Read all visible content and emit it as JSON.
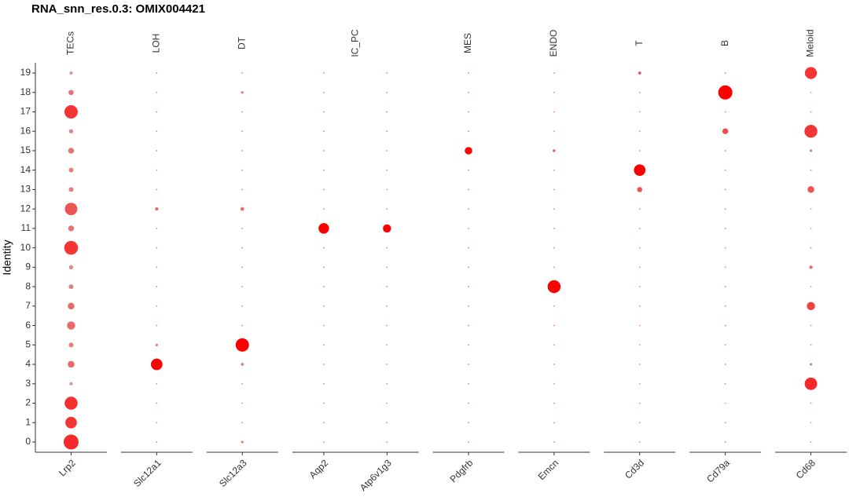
{
  "chart_data": {
    "type": "dot",
    "title": "RNA_snn_res.0.3: OMIX004421",
    "y_label": "Identity",
    "categories": [
      "0",
      "1",
      "2",
      "3",
      "4",
      "5",
      "6",
      "7",
      "8",
      "9",
      "10",
      "11",
      "12",
      "13",
      "14",
      "15",
      "16",
      "17",
      "18",
      "19"
    ],
    "color_low": "#d3d3d3",
    "color_high": "#ff0000",
    "size_max": 100,
    "panels": [
      {
        "name": "TECs",
        "genes": [
          {
            "name": "Lrp2",
            "values": [
              100,
              60,
              75,
              5,
              20,
              10,
              30,
              20,
              10,
              8,
              85,
              15,
              70,
              10,
              10,
              15,
              8,
              80,
              12,
              5
            ],
            "expression": [
              0.8,
              0.75,
              0.78,
              0.3,
              0.5,
              0.4,
              0.5,
              0.5,
              0.4,
              0.35,
              0.75,
              0.45,
              0.6,
              0.4,
              0.4,
              0.45,
              0.35,
              0.75,
              0.45,
              0.3
            ]
          }
        ]
      },
      {
        "name": "LOH",
        "genes": [
          {
            "name": "Slc12a1",
            "values": [
              1,
              1,
              1,
              1,
              60,
              3,
              1,
              1,
              1,
              1,
              1,
              1,
              5,
              1,
              1,
              1,
              1,
              1,
              1,
              1
            ],
            "expression": [
              0.3,
              0.3,
              0.3,
              0.3,
              1,
              0.4,
              0.3,
              0.3,
              0.3,
              0.3,
              0.3,
              0.3,
              0.5,
              0.3,
              0.3,
              0.3,
              0.3,
              0.3,
              0.3,
              0.3
            ]
          }
        ]
      },
      {
        "name": "DT",
        "genes": [
          {
            "name": "Slc12a3",
            "values": [
              3,
              1,
              1,
              1,
              4,
              80,
              1,
              1,
              1,
              1,
              1,
              1,
              6,
              1,
              1,
              1,
              1,
              1,
              3,
              1
            ],
            "expression": [
              0.4,
              0.3,
              0.3,
              0.3,
              0.4,
              1,
              0.3,
              0.3,
              0.3,
              0.3,
              0.3,
              0.3,
              0.5,
              0.3,
              0.3,
              0.3,
              0.3,
              0.3,
              0.4,
              0.3
            ]
          }
        ]
      },
      {
        "name": "IC_PC",
        "genes": [
          {
            "name": "Aqp2",
            "values": [
              1,
              1,
              1,
              1,
              1,
              1,
              1,
              1,
              1,
              1,
              1,
              50,
              1,
              1,
              1,
              1,
              1,
              1,
              1,
              1
            ],
            "expression": [
              0.3,
              0.3,
              0.3,
              0.3,
              0.3,
              0.3,
              0.3,
              0.3,
              0.3,
              0.3,
              0.3,
              1,
              0.3,
              0.3,
              0.3,
              0.3,
              0.3,
              0.3,
              0.3,
              0.3
            ]
          },
          {
            "name": "Atp6v1g3",
            "values": [
              1,
              1,
              1,
              1,
              1,
              1,
              1,
              1,
              1,
              1,
              1,
              30,
              1,
              1,
              1,
              1,
              1,
              1,
              1,
              1
            ],
            "expression": [
              0.3,
              0.3,
              0.3,
              0.3,
              0.3,
              0.3,
              0.3,
              0.3,
              0.3,
              0.3,
              0.3,
              1,
              0.3,
              0.3,
              0.3,
              0.3,
              0.3,
              0.3,
              0.3,
              0.3
            ]
          }
        ]
      },
      {
        "name": "MES",
        "genes": [
          {
            "name": "Pdgfrb",
            "values": [
              1,
              1,
              1,
              1,
              1,
              1,
              1,
              1,
              1,
              1,
              1,
              1,
              1,
              1,
              1,
              25,
              1,
              1,
              1,
              1
            ],
            "expression": [
              0.3,
              0.3,
              0.3,
              0.3,
              0.3,
              0.3,
              0.3,
              0.3,
              0.3,
              0.3,
              0.3,
              0.3,
              0.3,
              0.3,
              0.3,
              1,
              0.3,
              0.3,
              0.3,
              0.3
            ]
          }
        ]
      },
      {
        "name": "ENDO",
        "genes": [
          {
            "name": "Emcn",
            "values": [
              1,
              1,
              1,
              1,
              1,
              1,
              1,
              1,
              75,
              1,
              1,
              1,
              1,
              1,
              1,
              3,
              1,
              1,
              1,
              1
            ],
            "expression": [
              0.3,
              0.3,
              0.3,
              0.3,
              0.3,
              0.3,
              0.3,
              0.3,
              1,
              0.3,
              0.3,
              0.3,
              0.3,
              0.3,
              0.3,
              0.6,
              0.3,
              0.3,
              0.3,
              0.3
            ]
          }
        ]
      },
      {
        "name": "T",
        "genes": [
          {
            "name": "Cd3d",
            "values": [
              1,
              1,
              1,
              1,
              1,
              1,
              1,
              1,
              1,
              1,
              1,
              1,
              1,
              12,
              60,
              1,
              1,
              1,
              1,
              4
            ],
            "expression": [
              0.3,
              0.3,
              0.3,
              0.3,
              0.3,
              0.3,
              0.3,
              0.3,
              0.3,
              0.3,
              0.3,
              0.3,
              0.3,
              0.6,
              1,
              0.3,
              0.3,
              0.3,
              0.3,
              0.6
            ]
          }
        ]
      },
      {
        "name": "B",
        "genes": [
          {
            "name": "Cd79a",
            "values": [
              1,
              1,
              1,
              1,
              1,
              1,
              1,
              1,
              1,
              1,
              1,
              1,
              1,
              1,
              1,
              1,
              15,
              1,
              90,
              1
            ],
            "expression": [
              0.3,
              0.3,
              0.3,
              0.3,
              0.3,
              0.3,
              0.3,
              0.3,
              0.3,
              0.3,
              0.3,
              0.3,
              0.3,
              0.3,
              0.3,
              0.3,
              0.65,
              0.3,
              1,
              0.3
            ]
          }
        ]
      },
      {
        "name": "Meloid",
        "genes": [
          {
            "name": "Cd68",
            "values": [
              1,
              1,
              1,
              70,
              3,
              1,
              1,
              30,
              1,
              5,
              1,
              1,
              1,
              20,
              1,
              3,
              75,
              1,
              1,
              65
            ],
            "expression": [
              0.3,
              0.3,
              0.3,
              0.8,
              0.4,
              0.3,
              0.3,
              0.7,
              0.3,
              0.5,
              0.3,
              0.3,
              0.3,
              0.6,
              0.3,
              0.4,
              0.75,
              0.3,
              0.3,
              0.75
            ]
          }
        ]
      }
    ]
  }
}
